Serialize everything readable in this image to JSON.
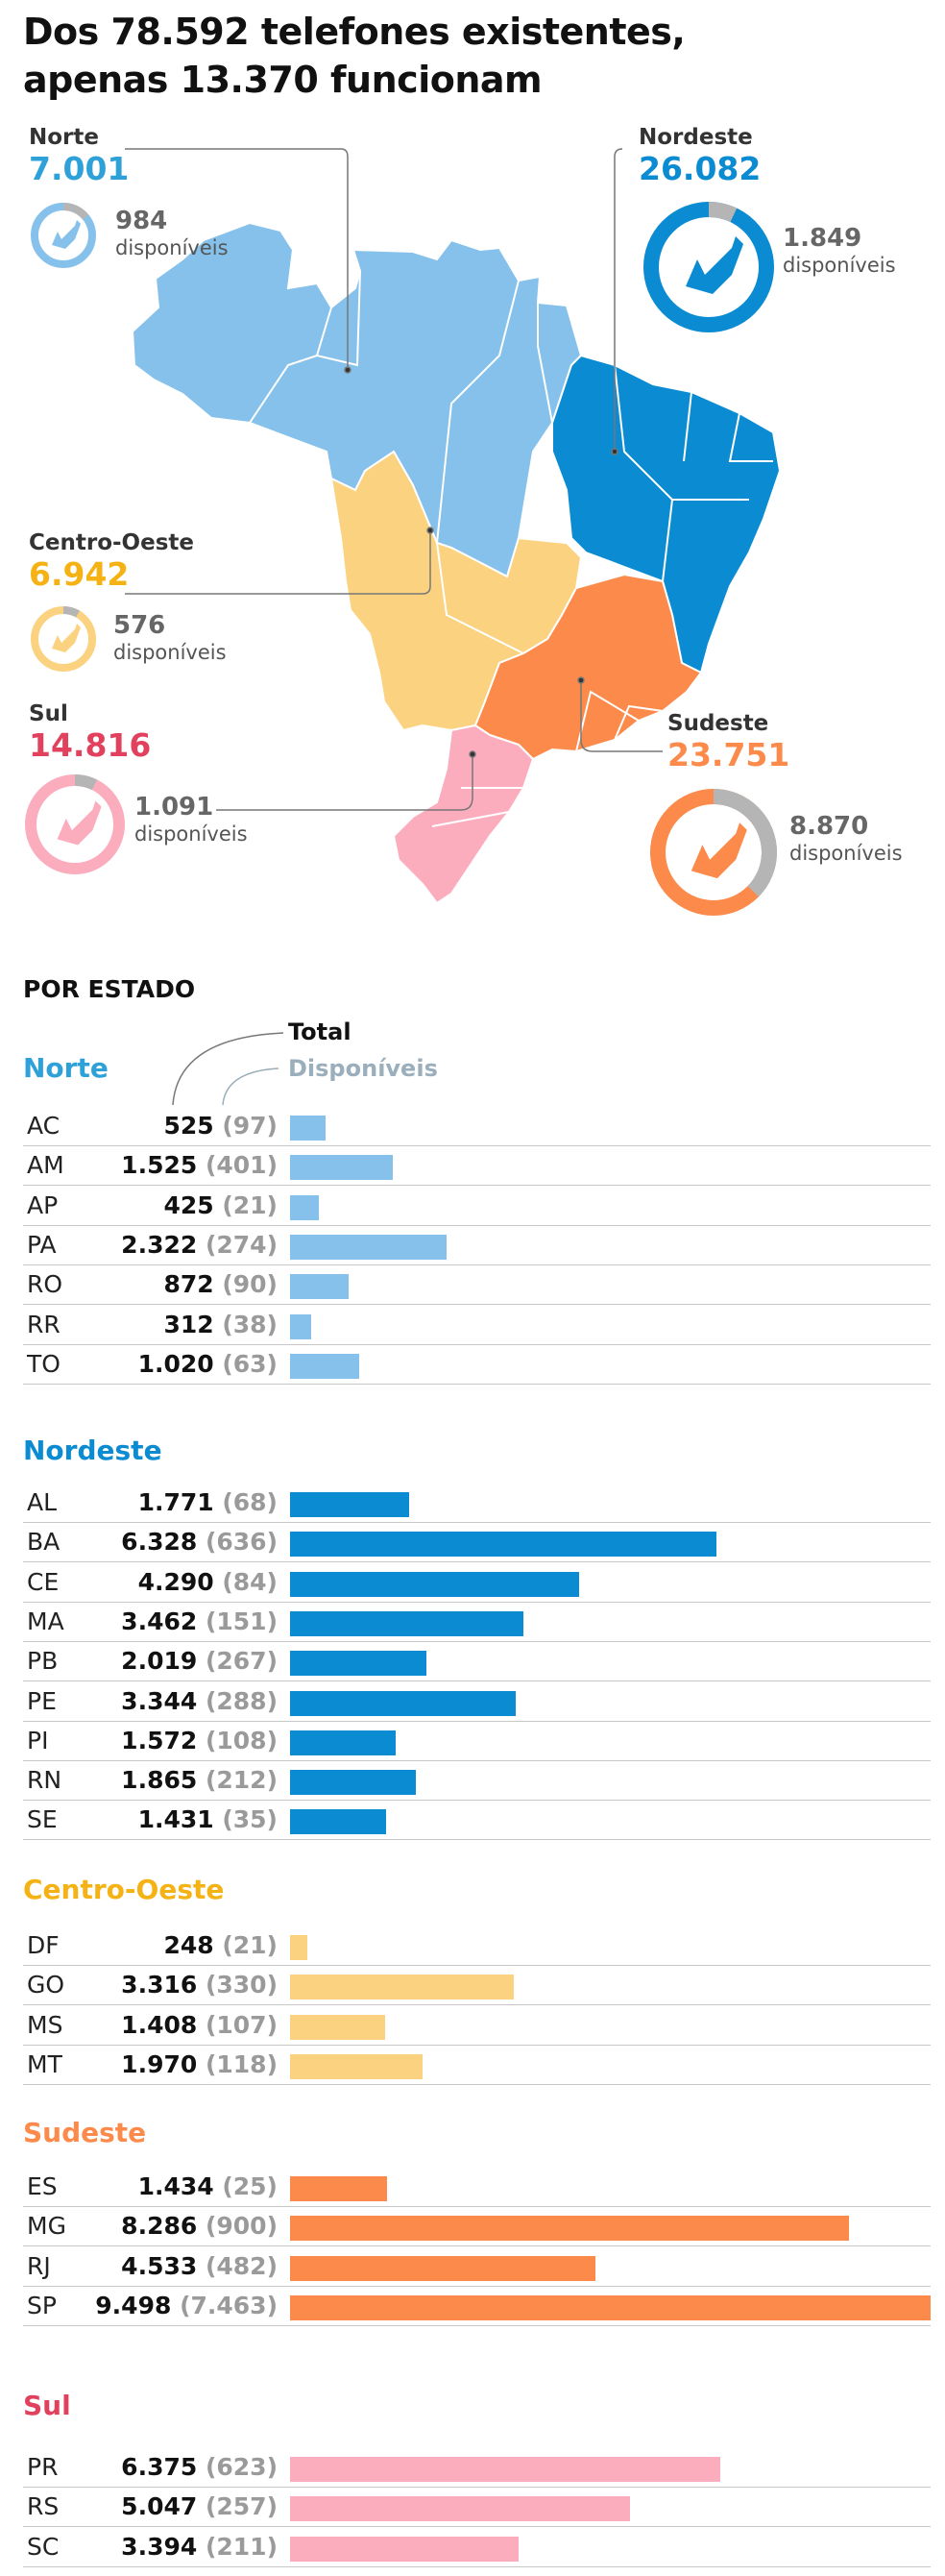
{
  "title": [
    "Dos 78.592 telefones existentes,",
    "apenas 13.370 funcionam"
  ],
  "colors": {
    "norte": "#85c1ea",
    "nordeste": "#0b8bd2",
    "centro_oeste": "#fbd280",
    "sudeste": "#fb8a4b",
    "sul": "#fbadbe",
    "norte_label": "#2ea1d8",
    "centro_label": "#f5b215",
    "sul_label": "#e2415e",
    "gray_ring": "#b5b5b5"
  },
  "regions": [
    {
      "key": "norte",
      "name": "Norte",
      "total": "7.001",
      "available": "984",
      "available_label": "disponíveis",
      "icon": "phone-icon"
    },
    {
      "key": "nordeste",
      "name": "Nordeste",
      "total": "26.082",
      "available": "1.849",
      "available_label": "disponíveis",
      "icon": "phone-icon"
    },
    {
      "key": "centro_oeste",
      "name": "Centro-Oeste",
      "total": "6.942",
      "available": "576",
      "available_label": "disponíveis",
      "icon": "phone-icon"
    },
    {
      "key": "sul",
      "name": "Sul",
      "total": "14.816",
      "available": "1.091",
      "available_label": "disponíveis",
      "icon": "phone-icon"
    },
    {
      "key": "sudeste",
      "name": "Sudeste",
      "total": "23.751",
      "available": "8.870",
      "available_label": "disponíveis",
      "icon": "phone-icon"
    }
  ],
  "section": {
    "title": "POR ESTADO",
    "legend_total": "Total",
    "legend_available": "Disponíveis"
  },
  "chart_data": {
    "type": "bar",
    "orientation": "horizontal",
    "groups": [
      {
        "name": "Norte",
        "rows": [
          {
            "state": "AC",
            "total": 525,
            "available": 97,
            "total_label": "525",
            "available_label": "(97)"
          },
          {
            "state": "AM",
            "total": 1525,
            "available": 401,
            "total_label": "1.525",
            "available_label": "(401)"
          },
          {
            "state": "AP",
            "total": 425,
            "available": 21,
            "total_label": "425",
            "available_label": "(21)"
          },
          {
            "state": "PA",
            "total": 2322,
            "available": 274,
            "total_label": "2.322",
            "available_label": "(274)"
          },
          {
            "state": "RO",
            "total": 872,
            "available": 90,
            "total_label": "872",
            "available_label": "(90)"
          },
          {
            "state": "RR",
            "total": 312,
            "available": 38,
            "total_label": "312",
            "available_label": "(38)"
          },
          {
            "state": "TO",
            "total": 1020,
            "available": 63,
            "total_label": "1.020",
            "available_label": "(63)"
          }
        ]
      },
      {
        "name": "Nordeste",
        "rows": [
          {
            "state": "AL",
            "total": 1771,
            "available": 68,
            "total_label": "1.771",
            "available_label": "(68)"
          },
          {
            "state": "BA",
            "total": 6328,
            "available": 636,
            "total_label": "6.328",
            "available_label": "(636)"
          },
          {
            "state": "CE",
            "total": 4290,
            "available": 84,
            "total_label": "4.290",
            "available_label": "(84)"
          },
          {
            "state": "MA",
            "total": 3462,
            "available": 151,
            "total_label": "3.462",
            "available_label": "(151)"
          },
          {
            "state": "PB",
            "total": 2019,
            "available": 267,
            "total_label": "2.019",
            "available_label": "(267)"
          },
          {
            "state": "PE",
            "total": 3344,
            "available": 288,
            "total_label": "3.344",
            "available_label": "(288)"
          },
          {
            "state": "PI",
            "total": 1572,
            "available": 108,
            "total_label": "1.572",
            "available_label": "(108)"
          },
          {
            "state": "RN",
            "total": 1865,
            "available": 212,
            "total_label": "1.865",
            "available_label": "(212)"
          },
          {
            "state": "SE",
            "total": 1431,
            "available": 35,
            "total_label": "1.431",
            "available_label": "(35)"
          }
        ]
      },
      {
        "name": "Centro-Oeste",
        "rows": [
          {
            "state": "DF",
            "total": 248,
            "available": 21,
            "total_label": "248",
            "available_label": "(21)"
          },
          {
            "state": "GO",
            "total": 3316,
            "available": 330,
            "total_label": "3.316",
            "available_label": "(330)"
          },
          {
            "state": "MS",
            "total": 1408,
            "available": 107,
            "total_label": "1.408",
            "available_label": "(107)"
          },
          {
            "state": "MT",
            "total": 1970,
            "available": 118,
            "total_label": "1.970",
            "available_label": "(118)"
          }
        ]
      },
      {
        "name": "Sudeste",
        "rows": [
          {
            "state": "ES",
            "total": 1434,
            "available": 25,
            "total_label": "1.434",
            "available_label": "(25)"
          },
          {
            "state": "MG",
            "total": 8286,
            "available": 900,
            "total_label": "8.286",
            "available_label": "(900)"
          },
          {
            "state": "RJ",
            "total": 4533,
            "available": 482,
            "total_label": "4.533",
            "available_label": "(482)"
          },
          {
            "state": "SP",
            "total": 9498,
            "available": 7463,
            "total_label": "9.498",
            "available_label": "(7.463)"
          }
        ]
      },
      {
        "name": "Sul",
        "rows": [
          {
            "state": "PR",
            "total": 6375,
            "available": 623,
            "total_label": "6.375",
            "available_label": "(623)"
          },
          {
            "state": "RS",
            "total": 5047,
            "available": 257,
            "total_label": "5.047",
            "available_label": "(257)"
          },
          {
            "state": "SC",
            "total": 3394,
            "available": 211,
            "total_label": "3.394",
            "available_label": "(211)"
          }
        ]
      }
    ]
  }
}
